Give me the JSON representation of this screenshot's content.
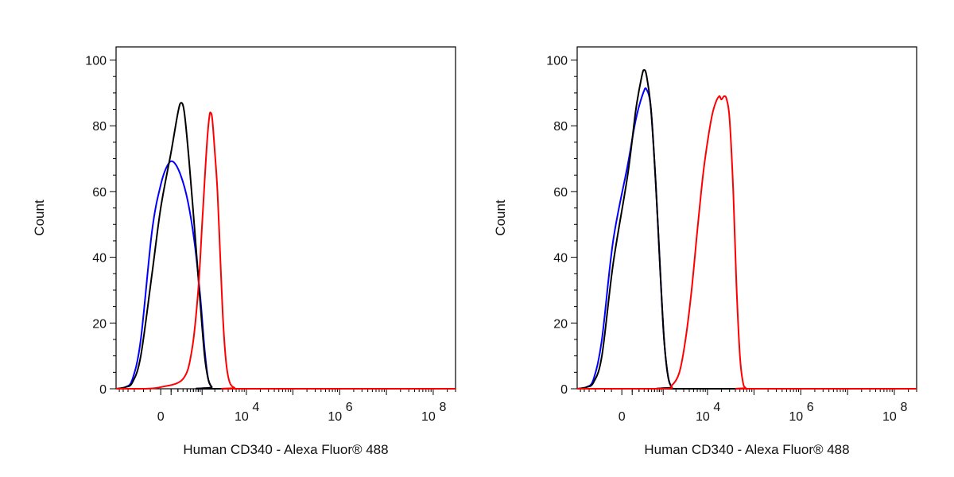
{
  "chart_data": [
    {
      "type": "line",
      "title": "",
      "xlabel": "Human CD340 - Alexa Fluor® 488",
      "ylabel": "Count",
      "x_scale": "biexponential",
      "xlim": [
        -1200,
        300000000
      ],
      "ylim": [
        0,
        104
      ],
      "y_ticks": [
        0,
        20,
        40,
        60,
        80,
        100
      ],
      "x_ticks": [
        {
          "value": 0,
          "base": "0",
          "exp": ""
        },
        {
          "value": 10000,
          "base": "10",
          "exp": "4"
        },
        {
          "value": 1000000,
          "base": "10",
          "exp": "6"
        },
        {
          "value": 100000000,
          "base": "10",
          "exp": "8"
        }
      ],
      "grid": false,
      "legend": "none",
      "series": [
        {
          "color": "#0000ff",
          "points": [
            [
              -1200,
              0
            ],
            [
              -700,
              0.5
            ],
            [
              -450,
              3
            ],
            [
              -250,
              15
            ],
            [
              -80,
              48
            ],
            [
              0,
              62
            ],
            [
              60,
              68
            ],
            [
              130,
              69
            ],
            [
              250,
              65
            ],
            [
              420,
              57
            ],
            [
              650,
              44
            ],
            [
              900,
              28
            ],
            [
              1150,
              12
            ],
            [
              1400,
              3
            ],
            [
              1700,
              0.5
            ],
            [
              2000,
              0
            ],
            [
              300000000,
              0
            ]
          ]
        },
        {
          "color": "#000000",
          "points": [
            [
              -1200,
              0
            ],
            [
              -700,
              0.5
            ],
            [
              -450,
              2
            ],
            [
              -250,
              10
            ],
            [
              -80,
              35
            ],
            [
              0,
              55
            ],
            [
              100,
              72
            ],
            [
              200,
              84
            ],
            [
              260,
              87
            ],
            [
              330,
              84
            ],
            [
              450,
              70
            ],
            [
              650,
              48
            ],
            [
              900,
              26
            ],
            [
              1150,
              10
            ],
            [
              1400,
              3
            ],
            [
              1700,
              0.5
            ],
            [
              2000,
              0
            ],
            [
              300000000,
              0
            ]
          ]
        },
        {
          "color": "#ff0000",
          "points": [
            [
              -1200,
              0
            ],
            [
              -200,
              0
            ],
            [
              0,
              0.5
            ],
            [
              300,
              3
            ],
            [
              550,
              12
            ],
            [
              800,
              30
            ],
            [
              1000,
              50
            ],
            [
              1200,
              67
            ],
            [
              1350,
              77
            ],
            [
              1500,
              83
            ],
            [
              1600,
              84
            ],
            [
              1750,
              82
            ],
            [
              2000,
              72
            ],
            [
              2300,
              60
            ],
            [
              2700,
              38
            ],
            [
              3100,
              20
            ],
            [
              3600,
              8
            ],
            [
              4300,
              2
            ],
            [
              5500,
              0.3
            ],
            [
              7000,
              0
            ],
            [
              300000000,
              0
            ]
          ]
        }
      ]
    },
    {
      "type": "line",
      "title": "",
      "xlabel": "Human CD340 - Alexa Fluor® 488",
      "ylabel": "Count",
      "x_scale": "biexponential",
      "xlim": [
        -1200,
        300000000
      ],
      "ylim": [
        0,
        104
      ],
      "y_ticks": [
        0,
        20,
        40,
        60,
        80,
        100
      ],
      "x_ticks": [
        {
          "value": 0,
          "base": "0",
          "exp": ""
        },
        {
          "value": 10000,
          "base": "10",
          "exp": "4"
        },
        {
          "value": 1000000,
          "base": "10",
          "exp": "6"
        },
        {
          "value": 100000000,
          "base": "10",
          "exp": "8"
        }
      ],
      "grid": false,
      "legend": "none",
      "series": [
        {
          "color": "#0000ff",
          "points": [
            [
              -1200,
              0
            ],
            [
              -700,
              0.5
            ],
            [
              -450,
              3
            ],
            [
              -250,
              15
            ],
            [
              -80,
              45
            ],
            [
              50,
              68
            ],
            [
              150,
              82
            ],
            [
              280,
              90
            ],
            [
              360,
              91
            ],
            [
              480,
              85
            ],
            [
              650,
              62
            ],
            [
              850,
              35
            ],
            [
              1050,
              15
            ],
            [
              1300,
              4
            ],
            [
              1600,
              0.5
            ],
            [
              2000,
              0
            ],
            [
              300000000,
              0
            ]
          ]
        },
        {
          "color": "#000000",
          "points": [
            [
              -1200,
              0
            ],
            [
              -700,
              0.5
            ],
            [
              -450,
              2
            ],
            [
              -250,
              10
            ],
            [
              -80,
              38
            ],
            [
              50,
              65
            ],
            [
              150,
              85
            ],
            [
              250,
              95
            ],
            [
              300,
              97
            ],
            [
              360,
              95
            ],
            [
              480,
              85
            ],
            [
              650,
              62
            ],
            [
              850,
              35
            ],
            [
              1050,
              15
            ],
            [
              1300,
              4
            ],
            [
              1600,
              0.5
            ],
            [
              2000,
              0
            ],
            [
              300000000,
              0
            ]
          ]
        },
        {
          "color": "#ff0000",
          "points": [
            [
              -1200,
              0
            ],
            [
              1000,
              0
            ],
            [
              1600,
              1
            ],
            [
              2400,
              5
            ],
            [
              3300,
              15
            ],
            [
              4500,
              30
            ],
            [
              6000,
              48
            ],
            [
              8000,
              65
            ],
            [
              10000,
              75
            ],
            [
              12500,
              83
            ],
            [
              15000,
              87
            ],
            [
              18000,
              89
            ],
            [
              20000,
              88
            ],
            [
              23000,
              89
            ],
            [
              26000,
              88
            ],
            [
              30000,
              82
            ],
            [
              36000,
              60
            ],
            [
              42000,
              32
            ],
            [
              50000,
              10
            ],
            [
              58000,
              2
            ],
            [
              66000,
              0.3
            ],
            [
              80000,
              0
            ],
            [
              300000000,
              0
            ]
          ]
        }
      ]
    }
  ]
}
